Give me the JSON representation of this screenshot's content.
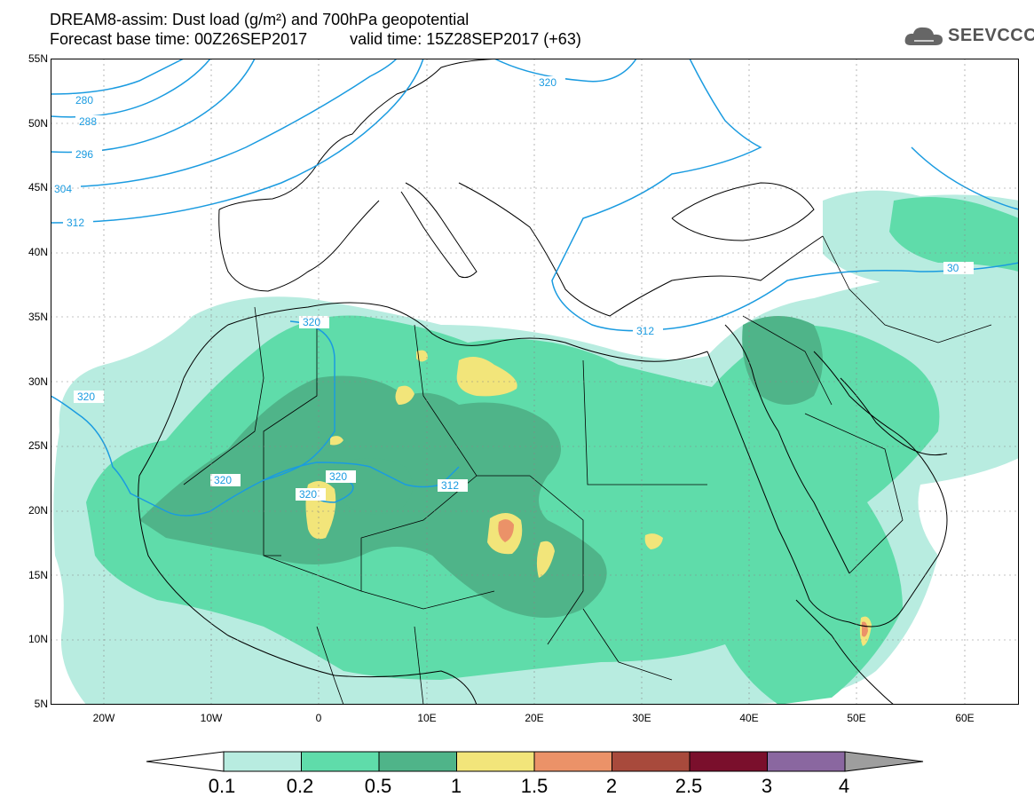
{
  "title": {
    "line1": "DREAM8-assim: Dust load (g/m²) and 700hPa geopotential",
    "base_time": "Forecast base time: 00Z26SEP2017",
    "valid_time": "valid time: 15Z28SEP2017 (+63)"
  },
  "logo": {
    "name": "SEEVCCC",
    "icon": "cloud-icon"
  },
  "axes": {
    "lat_labels": [
      "55N",
      "50N",
      "45N",
      "40N",
      "35N",
      "30N",
      "25N",
      "20N",
      "15N",
      "10N",
      "5N"
    ],
    "lon_labels": [
      "20W",
      "10W",
      "0",
      "10E",
      "20E",
      "30E",
      "40E",
      "50E",
      "60E"
    ]
  },
  "contours": {
    "labels": [
      "280",
      "288",
      "296",
      "304",
      "312",
      "320",
      "320",
      "320",
      "320",
      "320",
      "320",
      "312",
      "312",
      "30"
    ],
    "color": "#1a9be0"
  },
  "colorbar": {
    "levels": [
      "0.1",
      "0.2",
      "0.5",
      "1",
      "1.5",
      "2",
      "2.5",
      "3",
      "4"
    ],
    "colors": [
      "#b8ece0",
      "#5fdcaa",
      "#4fb489",
      "#f2e57a",
      "#eb9268",
      "#a84a3c",
      "#7a0f2c",
      "#8a67a0",
      "#9e9e9e"
    ]
  }
}
